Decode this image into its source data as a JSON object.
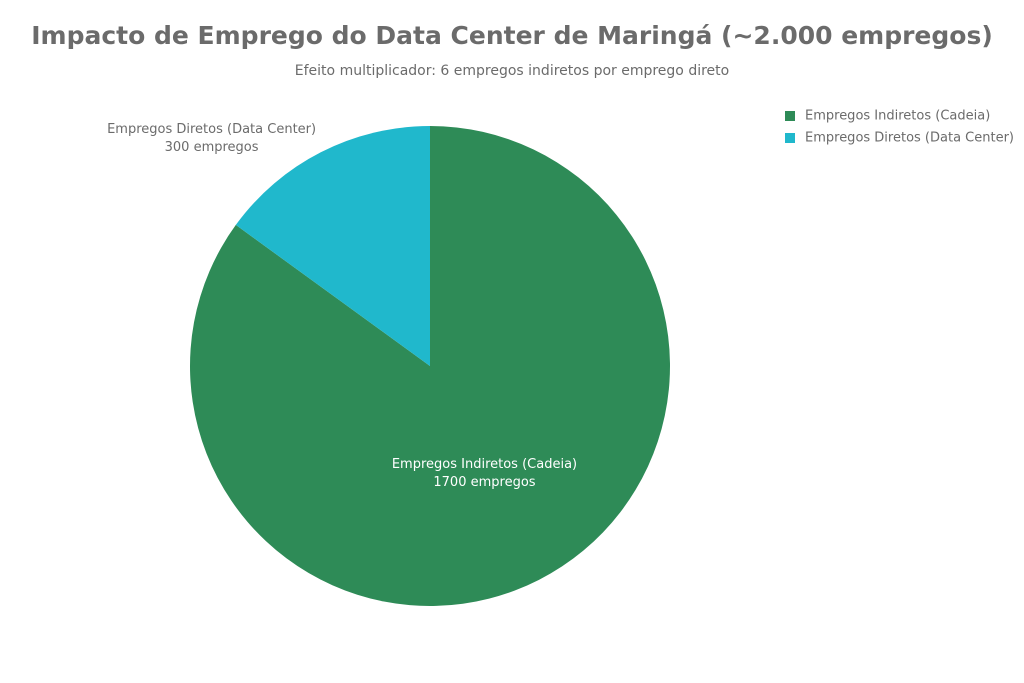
{
  "chart_data": {
    "type": "pie",
    "title": "Impacto de Emprego do Data Center de Maringá (~2.000 empregos)",
    "subtitle": "Efeito multiplicador: 6 empregos indiretos por emprego direto",
    "categories": [
      "Empregos Indiretos (Cadeia)",
      "Empregos Diretos (Data Center)"
    ],
    "values": [
      1700,
      300
    ],
    "value_labels": [
      "1700 empregos",
      "300 empregos"
    ],
    "colors": [
      "#2e8b57",
      "#20b8cc"
    ],
    "legend": "top-right"
  }
}
